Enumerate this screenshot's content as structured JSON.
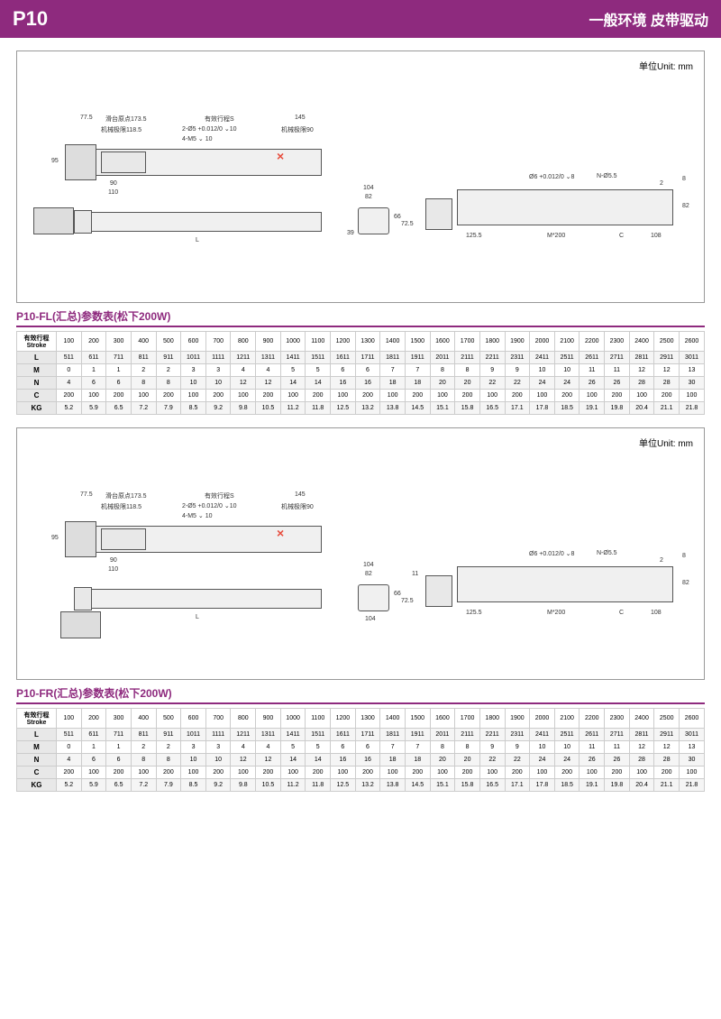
{
  "header": {
    "left": "P10",
    "right": "一般环境  皮带驱动"
  },
  "unit_label": "单位Unit: mm",
  "diagram_labels": {
    "d1": "77.5",
    "d2": "滑台原点173.5",
    "d3": "有效行程S",
    "d4": "145",
    "d5": "机械极限118.5",
    "d6": "2-Ø5 +0.012/0 ⌄10",
    "d7": "机械极限90",
    "d8": "4-M5 ⌄ 10",
    "d9": "95",
    "d10": "90",
    "d11": "110",
    "d12": "L",
    "d13": "104",
    "d14": "82",
    "d15": "66",
    "d16": "72.5",
    "d17": "39",
    "d18": "11",
    "d19": "Ø6 +0.012/0 ⌄8",
    "d20": "N-Ø5.5",
    "d21": "2",
    "d22": "8",
    "d23": "82",
    "d24": "125.5",
    "d25": "M*200",
    "d26": "C",
    "d27": "108",
    "d28": "104"
  },
  "table1": {
    "title": "P10-FL(汇总)参数表(松下200W)",
    "stroke_label": "有效行程Stroke",
    "headers": [
      "100",
      "200",
      "300",
      "400",
      "500",
      "600",
      "700",
      "800",
      "900",
      "1000",
      "1100",
      "1200",
      "1300",
      "1400",
      "1500",
      "1600",
      "1700",
      "1800",
      "1900",
      "2000",
      "2100",
      "2200",
      "2300",
      "2400",
      "2500",
      "2600"
    ],
    "rows": [
      {
        "h": "L",
        "v": [
          "511",
          "611",
          "711",
          "811",
          "911",
          "1011",
          "1111",
          "1211",
          "1311",
          "1411",
          "1511",
          "1611",
          "1711",
          "1811",
          "1911",
          "2011",
          "2111",
          "2211",
          "2311",
          "2411",
          "2511",
          "2611",
          "2711",
          "2811",
          "2911",
          "3011"
        ]
      },
      {
        "h": "M",
        "v": [
          "0",
          "1",
          "1",
          "2",
          "2",
          "3",
          "3",
          "4",
          "4",
          "5",
          "5",
          "6",
          "6",
          "7",
          "7",
          "8",
          "8",
          "9",
          "9",
          "10",
          "10",
          "11",
          "11",
          "12",
          "12",
          "13"
        ]
      },
      {
        "h": "N",
        "v": [
          "4",
          "6",
          "6",
          "8",
          "8",
          "10",
          "10",
          "12",
          "12",
          "14",
          "14",
          "16",
          "16",
          "18",
          "18",
          "20",
          "20",
          "22",
          "22",
          "24",
          "24",
          "26",
          "26",
          "28",
          "28",
          "30"
        ]
      },
      {
        "h": "C",
        "v": [
          "200",
          "100",
          "200",
          "100",
          "200",
          "100",
          "200",
          "100",
          "200",
          "100",
          "200",
          "100",
          "200",
          "100",
          "200",
          "100",
          "200",
          "100",
          "200",
          "100",
          "200",
          "100",
          "200",
          "100",
          "200",
          "100"
        ]
      },
      {
        "h": "KG",
        "v": [
          "5.2",
          "5.9",
          "6.5",
          "7.2",
          "7.9",
          "8.5",
          "9.2",
          "9.8",
          "10.5",
          "11.2",
          "11.8",
          "12.5",
          "13.2",
          "13.8",
          "14.5",
          "15.1",
          "15.8",
          "16.5",
          "17.1",
          "17.8",
          "18.5",
          "19.1",
          "19.8",
          "20.4",
          "21.1",
          "21.8"
        ]
      }
    ]
  },
  "table2": {
    "title": "P10-FR(汇总)参数表(松下200W)",
    "stroke_label": "有效行程Stroke",
    "headers": [
      "100",
      "200",
      "300",
      "400",
      "500",
      "600",
      "700",
      "800",
      "900",
      "1000",
      "1100",
      "1200",
      "1300",
      "1400",
      "1500",
      "1600",
      "1700",
      "1800",
      "1900",
      "2000",
      "2100",
      "2200",
      "2300",
      "2400",
      "2500",
      "2600"
    ],
    "rows": [
      {
        "h": "L",
        "v": [
          "511",
          "611",
          "711",
          "811",
          "911",
          "1011",
          "1111",
          "1211",
          "1311",
          "1411",
          "1511",
          "1611",
          "1711",
          "1811",
          "1911",
          "2011",
          "2111",
          "2211",
          "2311",
          "2411",
          "2511",
          "2611",
          "2711",
          "2811",
          "2911",
          "3011"
        ]
      },
      {
        "h": "M",
        "v": [
          "0",
          "1",
          "1",
          "2",
          "2",
          "3",
          "3",
          "4",
          "4",
          "5",
          "5",
          "6",
          "6",
          "7",
          "7",
          "8",
          "8",
          "9",
          "9",
          "10",
          "10",
          "11",
          "11",
          "12",
          "12",
          "13"
        ]
      },
      {
        "h": "N",
        "v": [
          "4",
          "6",
          "6",
          "8",
          "8",
          "10",
          "10",
          "12",
          "12",
          "14",
          "14",
          "16",
          "16",
          "18",
          "18",
          "20",
          "20",
          "22",
          "22",
          "24",
          "24",
          "26",
          "26",
          "28",
          "28",
          "30"
        ]
      },
      {
        "h": "C",
        "v": [
          "200",
          "100",
          "200",
          "100",
          "200",
          "100",
          "200",
          "100",
          "200",
          "100",
          "200",
          "100",
          "200",
          "100",
          "200",
          "100",
          "200",
          "100",
          "200",
          "100",
          "200",
          "100",
          "200",
          "100",
          "200",
          "100"
        ]
      },
      {
        "h": "KG",
        "v": [
          "5.2",
          "5.9",
          "6.5",
          "7.2",
          "7.9",
          "8.5",
          "9.2",
          "9.8",
          "10.5",
          "11.2",
          "11.8",
          "12.5",
          "13.2",
          "13.8",
          "14.5",
          "15.1",
          "15.8",
          "16.5",
          "17.1",
          "17.8",
          "18.5",
          "19.1",
          "19.8",
          "20.4",
          "21.1",
          "21.8"
        ]
      }
    ]
  }
}
